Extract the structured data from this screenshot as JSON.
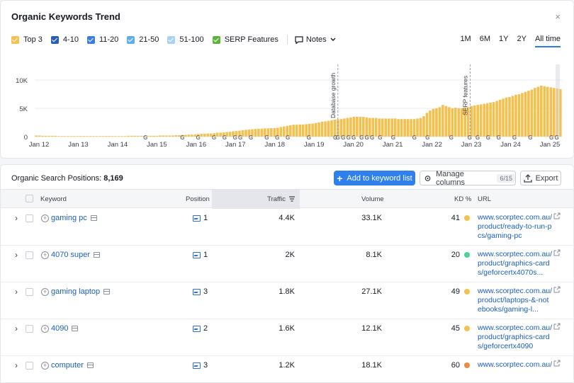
{
  "header": {
    "title": "Organic Keywords Trend",
    "close_icon": "×"
  },
  "legend": [
    {
      "label": "Top 3",
      "color": "#f4c04e"
    },
    {
      "label": "4-10",
      "color": "#2b5db8"
    },
    {
      "label": "11-20",
      "color": "#3a7de3"
    },
    {
      "label": "21-50",
      "color": "#5faeea"
    },
    {
      "label": "51-100",
      "color": "#a8d2f4"
    },
    {
      "label": "SERP Features",
      "color": "#5fb33a"
    }
  ],
  "notes_label": "Notes",
  "ranges": [
    "1M",
    "6M",
    "1Y",
    "2Y",
    "All time"
  ],
  "active_range": "All time",
  "chart_data": {
    "type": "bar",
    "title": "Organic Keywords Trend",
    "series_name": "Top 3",
    "y_ticks": [
      "10K",
      "5K",
      "0"
    ],
    "ylim": [
      0,
      12000
    ],
    "x_ticks": [
      "Jan 12",
      "Jan 13",
      "Jan 14",
      "Jan 15",
      "Jan 16",
      "Jan 17",
      "Jan 18",
      "Jan 19",
      "Jan 20",
      "Jan 21",
      "Jan 22",
      "Jan 23",
      "Jan 24",
      "Jan 25"
    ],
    "annotations": [
      "Database growth",
      "SERP features"
    ],
    "grid": true,
    "values": [
      200,
      200,
      150,
      150,
      150,
      150,
      150,
      100,
      100,
      100,
      100,
      100,
      100,
      100,
      100,
      100,
      100,
      100,
      100,
      100,
      100,
      100,
      100,
      100,
      100,
      100,
      100,
      100,
      100,
      150,
      150,
      150,
      150,
      150,
      150,
      150,
      150,
      150,
      150,
      200,
      200,
      200,
      200,
      200,
      250,
      250,
      300,
      300,
      350,
      350,
      400,
      450,
      500,
      500,
      550,
      550,
      600,
      700,
      700,
      750,
      800,
      850,
      950,
      1000,
      1050,
      1150,
      1200,
      1250,
      1300,
      1350,
      1400,
      1400,
      1450,
      1450,
      1500,
      1500,
      1550,
      1700,
      1800,
      1900,
      2000,
      2100,
      2100,
      2150,
      2150,
      2200,
      2250,
      2300,
      2400,
      2500,
      2650,
      2700,
      2800,
      2900,
      3000,
      3050,
      3100,
      3200,
      3300,
      3400,
      3500,
      3500,
      3500,
      3500,
      3400,
      3300,
      3300,
      3300,
      3200,
      3200,
      3200,
      3200,
      3200,
      3200,
      3100,
      3100,
      3100,
      3100,
      3100,
      3100,
      3200,
      3300,
      3600,
      4200,
      4600,
      4900,
      5000,
      5200,
      5600,
      5400,
      5200,
      5000,
      5100,
      5000,
      5000,
      5200,
      5200,
      5400,
      5500,
      5600,
      5700,
      5800,
      5900,
      6000,
      6100,
      6300,
      6500,
      6700,
      6900,
      7000,
      7200,
      7400,
      7500,
      7700,
      7900,
      8100,
      8300,
      8600,
      8800,
      9000,
      8900,
      8800,
      8700,
      8600,
      8500,
      8400
    ],
    "note_positions": [
      0.575,
      0.826
    ]
  },
  "table": {
    "title_label": "Organic Search Positions:",
    "title_count": "8,169",
    "add_button": "Add to keyword list",
    "manage_button": "Manage columns",
    "manage_count": "6/15",
    "export_button": "Export",
    "columns": {
      "keyword": "Keyword",
      "position": "Position",
      "traffic": "Traffic",
      "volume": "Volume",
      "kd": "KD %",
      "url": "URL"
    },
    "rows": [
      {
        "keyword": "gaming pc",
        "position": "1",
        "traffic": "4.4K",
        "volume": "33.1K",
        "kd": "41",
        "kd_color": "#f4c04e",
        "url": "www.scorptec.com.au/product/ready-to-run-pcs/gaming-pc"
      },
      {
        "keyword": "4070 super",
        "position": "1",
        "traffic": "2K",
        "volume": "8.1K",
        "kd": "20",
        "kd_color": "#49d39a",
        "url": "www.scorptec.com.au/product/graphics-cards/geforcertx4070s..."
      },
      {
        "keyword": "gaming laptop",
        "position": "3",
        "traffic": "1.8K",
        "volume": "27.1K",
        "kd": "49",
        "kd_color": "#f4c04e",
        "url": "www.scorptec.com.au/product/laptops-&-notebooks/gaming-l..."
      },
      {
        "keyword": "4090",
        "position": "2",
        "traffic": "1.6K",
        "volume": "12.1K",
        "kd": "45",
        "kd_color": "#f4c04e",
        "url": "www.scorptec.com.au/product/graphics-cards/geforcertx4090"
      },
      {
        "keyword": "computer",
        "position": "3",
        "traffic": "1.2K",
        "volume": "18.1K",
        "kd": "60",
        "kd_color": "#f08a3c",
        "url": "www.scorptec.com.au/"
      }
    ]
  }
}
